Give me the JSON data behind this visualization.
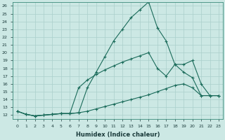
{
  "xlabel": "Humidex (Indice chaleur)",
  "xlim": [
    -0.5,
    23.5
  ],
  "ylim": [
    11.5,
    26.5
  ],
  "background_color": "#cce8e4",
  "grid_color": "#aacfcb",
  "line_color": "#1a6b5a",
  "line1_x": [
    0,
    1,
    2,
    3,
    4,
    5,
    6,
    7,
    8,
    9,
    10,
    11,
    12,
    13,
    14,
    15,
    16,
    17,
    18,
    19,
    20,
    21,
    22,
    23
  ],
  "line1_y": [
    12.5,
    12.1,
    11.9,
    12.0,
    12.1,
    12.2,
    12.2,
    12.3,
    15.5,
    17.5,
    19.5,
    21.5,
    23.0,
    24.5,
    25.5,
    26.5,
    23.2,
    21.5,
    18.5,
    18.5,
    19.0,
    16.0,
    14.5,
    14.5
  ],
  "line2_x": [
    0,
    1,
    2,
    3,
    4,
    5,
    6,
    7,
    8,
    9,
    10,
    11,
    12,
    13,
    14,
    15,
    16,
    17,
    18,
    19,
    20,
    21,
    22,
    23
  ],
  "line2_y": [
    12.5,
    12.1,
    11.9,
    12.0,
    12.1,
    12.2,
    12.2,
    15.5,
    16.5,
    17.2,
    17.8,
    18.3,
    18.8,
    19.2,
    19.6,
    20.0,
    18.0,
    17.0,
    18.5,
    17.5,
    16.8,
    14.5,
    14.5,
    14.5
  ],
  "line3_x": [
    0,
    1,
    2,
    3,
    4,
    5,
    6,
    7,
    8,
    9,
    10,
    11,
    12,
    13,
    14,
    15,
    16,
    17,
    18,
    19,
    20,
    21,
    22,
    23
  ],
  "line3_y": [
    12.5,
    12.1,
    11.9,
    12.0,
    12.1,
    12.2,
    12.2,
    12.3,
    12.5,
    12.8,
    13.1,
    13.4,
    13.7,
    14.0,
    14.3,
    14.6,
    15.0,
    15.4,
    15.8,
    16.0,
    15.5,
    14.5,
    14.5,
    14.5
  ],
  "xtick_labels": [
    "0",
    "1",
    "2",
    "3",
    "4",
    "5",
    "6",
    "7",
    "8",
    "9",
    "10",
    "11",
    "12",
    "13",
    "14",
    "15",
    "16",
    "17",
    "18",
    "19",
    "20",
    "21",
    "22",
    "23"
  ],
  "ytick_labels": [
    "12",
    "13",
    "14",
    "15",
    "16",
    "17",
    "18",
    "19",
    "20",
    "21",
    "22",
    "23",
    "24",
    "25",
    "26"
  ]
}
